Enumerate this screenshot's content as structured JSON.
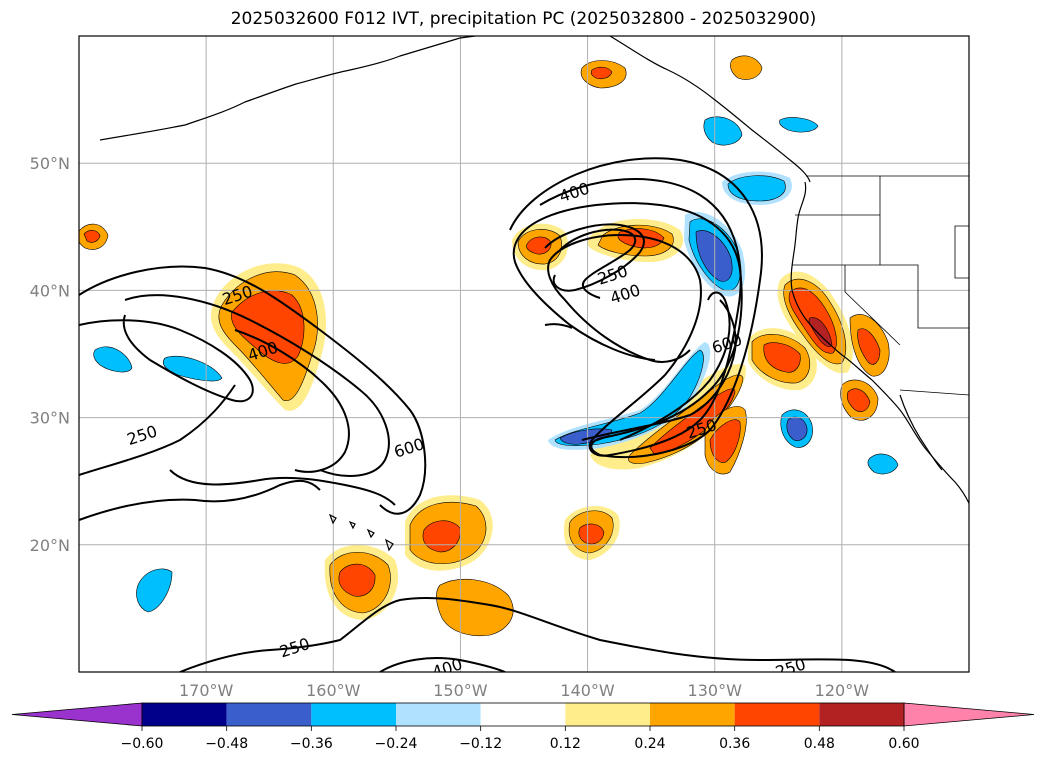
{
  "title": "2025032600 F012 IVT, precipitation PC (2025032800 - 2025032900)",
  "map": {
    "lat_labels": [
      "50°N",
      "40°N",
      "30°N",
      "20°N"
    ],
    "lon_labels": [
      "170°W",
      "160°W",
      "150°W",
      "140°W",
      "130°W",
      "120°W"
    ],
    "lat_values": [
      50,
      40,
      30,
      20
    ],
    "lon_values": [
      -170,
      -160,
      -150,
      -140,
      -130,
      -120
    ],
    "extent": {
      "lon_min": -180,
      "lon_max": -110,
      "lat_min": 10,
      "lat_max": 60
    },
    "gridlines": true,
    "contour_labels": [
      {
        "text": "400",
        "lon": -141,
        "lat": 47.6
      },
      {
        "text": "250",
        "lon": -138,
        "lat": 41.1
      },
      {
        "text": "400",
        "lon": -137,
        "lat": 39.6
      },
      {
        "text": "600",
        "lon": -129,
        "lat": 35.7
      },
      {
        "text": "250",
        "lon": -167.5,
        "lat": 39.5
      },
      {
        "text": "400",
        "lon": -165.5,
        "lat": 35.1
      },
      {
        "text": "600",
        "lon": -154,
        "lat": 27.5
      },
      {
        "text": "250",
        "lon": -175,
        "lat": 28.5
      },
      {
        "text": "250",
        "lon": -131,
        "lat": 29.0
      },
      {
        "text": "250",
        "lon": -163,
        "lat": 11.8
      },
      {
        "text": "400",
        "lon": -151,
        "lat": 10.2
      },
      {
        "text": "250",
        "lon": -124,
        "lat": 10.2
      }
    ]
  },
  "colorbar": {
    "tick_labels": [
      "−0.60",
      "−0.48",
      "−0.36",
      "−0.24",
      "−0.12",
      "0.12",
      "0.24",
      "0.36",
      "0.48",
      "0.60"
    ],
    "colors": [
      "#9a32cd",
      "#00008b",
      "#3a5fcd",
      "#00bfff",
      "#b0e2ff",
      "#ffffff",
      "#ffec8b",
      "#ffa500",
      "#ff4500",
      "#b22222",
      "#ff82ab"
    ],
    "extend": "both"
  }
}
